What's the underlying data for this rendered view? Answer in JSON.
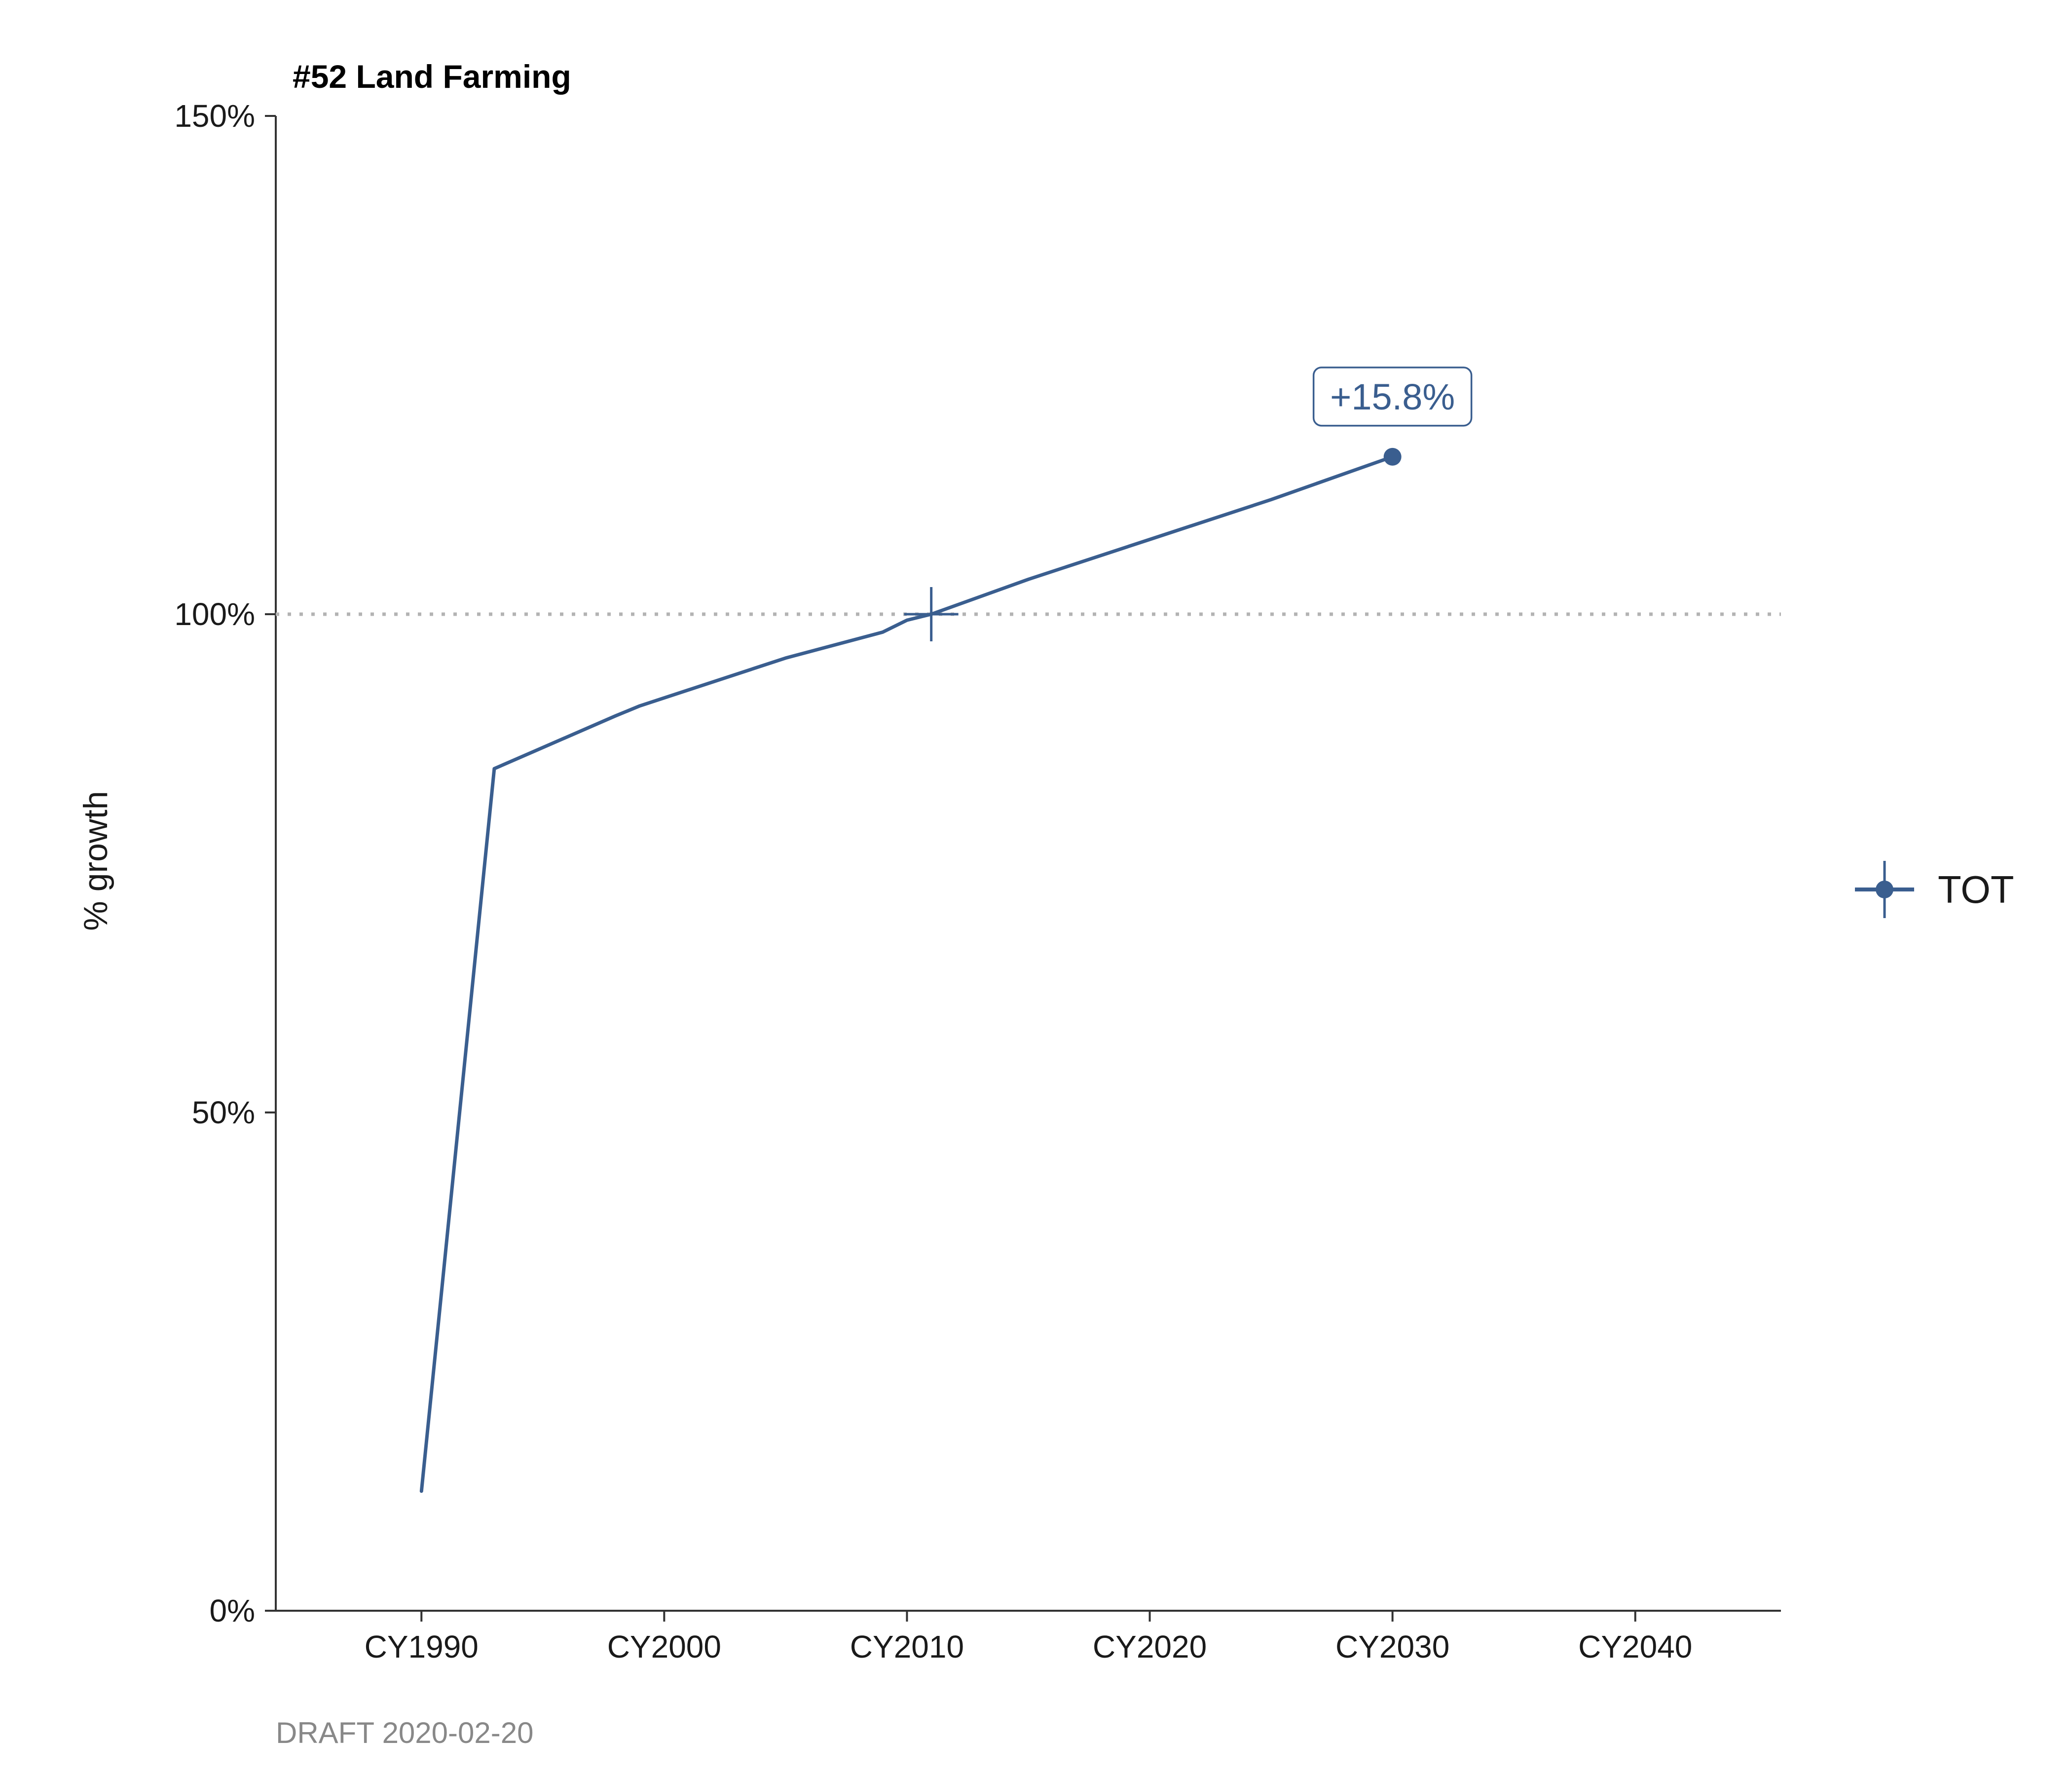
{
  "chart_data": {
    "type": "line",
    "title": "#52 Land Farming",
    "xlabel": "",
    "ylabel": "% growth",
    "caption": "DRAFT 2020-02-20",
    "xlim": [
      1984,
      2046
    ],
    "ylim": [
      0,
      150
    ],
    "x_ticks": [
      1990,
      2000,
      2010,
      2020,
      2030,
      2040
    ],
    "x_tick_labels": [
      "CY1990",
      "CY2000",
      "CY2010",
      "CY2020",
      "CY2030",
      "CY2040"
    ],
    "y_ticks": [
      0,
      50,
      100,
      150
    ],
    "y_tick_labels": [
      "0%",
      "50%",
      "100%",
      "150%"
    ],
    "reference_line": {
      "y": 100,
      "style": "dotted"
    },
    "grid": false,
    "legend_position": "right",
    "colors": {
      "series": "#3a5e8f",
      "reference": "#b3b3b3",
      "axis": "#333333"
    },
    "series": [
      {
        "name": "TOT",
        "x": [
          1990,
          1993,
          1998,
          1999,
          2005,
          2009,
          2010,
          2011,
          2015,
          2020,
          2025,
          2030
        ],
        "values": [
          12,
          84.5,
          89.8,
          90.8,
          95.6,
          98.2,
          99.4,
          100,
          103.5,
          107.5,
          111.5,
          115.8
        ]
      }
    ],
    "markers": [
      {
        "type": "reference-cross",
        "x": 2011,
        "y": 100
      },
      {
        "type": "point",
        "x": 2030,
        "y": 115.8
      }
    ],
    "annotations": [
      {
        "x": 2030,
        "y": 115.8,
        "text": "+15.8%"
      }
    ]
  }
}
